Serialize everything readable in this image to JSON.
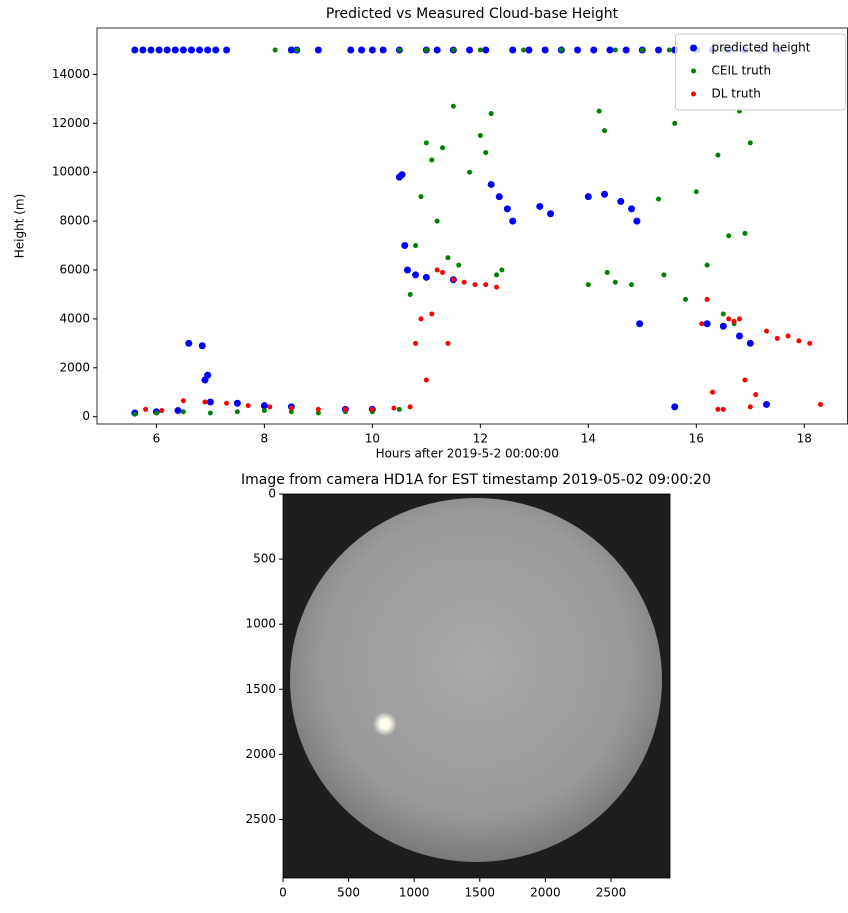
{
  "chart_data": [
    {
      "type": "scatter",
      "title": "Predicted vs Measured Cloud-base Height",
      "x_label": "Hours after 2019-5-2 00:00:00",
      "y_label": "Height (m)",
      "xlim": [
        4.9,
        18.8
      ],
      "ylim": [
        -300,
        15900
      ],
      "xticks": [
        6,
        8,
        10,
        12,
        14,
        16,
        18
      ],
      "yticks": [
        0,
        2000,
        4000,
        6000,
        8000,
        10000,
        12000,
        14000
      ],
      "grid": false,
      "legend": "upper right",
      "series": [
        {
          "name": "predicted height",
          "color": "#0000ff",
          "size": 3.5,
          "x": [
            5.6,
            5.75,
            5.9,
            6.05,
            6.2,
            6.35,
            6.5,
            6.65,
            6.8,
            6.95,
            7.1,
            7.3,
            8.5,
            8.6,
            9.0,
            9.6,
            9.8,
            10.0,
            10.2,
            10.5,
            11.0,
            11.2,
            11.5,
            11.8,
            12.1,
            12.6,
            12.9,
            13.2,
            13.5,
            13.8,
            14.1,
            14.4,
            14.7,
            15.0,
            15.3,
            15.6,
            16.0,
            16.3,
            16.6,
            16.9,
            17.2,
            17.5,
            5.6,
            6.0,
            6.4,
            6.6,
            6.85,
            6.9,
            6.95,
            7.0,
            7.5,
            8.0,
            8.5,
            9.5,
            10.0,
            10.5,
            10.55,
            10.6,
            10.65,
            10.8,
            11.0,
            11.5,
            12.2,
            12.35,
            12.5,
            12.6,
            13.1,
            13.3,
            14.0,
            14.3,
            14.6,
            14.8,
            14.9,
            14.95,
            15.6,
            16.2,
            16.5,
            16.8,
            17.0,
            17.3
          ],
          "values": [
            15000,
            15000,
            15000,
            15000,
            15000,
            15000,
            15000,
            15000,
            15000,
            15000,
            15000,
            15000,
            15000,
            15000,
            15000,
            15000,
            15000,
            15000,
            15000,
            15000,
            15000,
            15000,
            15000,
            15000,
            15000,
            15000,
            15000,
            15000,
            15000,
            15000,
            15000,
            15000,
            15000,
            15000,
            15000,
            15000,
            15000,
            15000,
            15000,
            15000,
            15000,
            15000,
            150,
            200,
            250,
            3000,
            2900,
            1500,
            1700,
            600,
            550,
            450,
            400,
            300,
            300,
            9800,
            9900,
            7000,
            6000,
            5800,
            5700,
            5600,
            9500,
            9000,
            8500,
            8000,
            8600,
            8300,
            9000,
            9100,
            8800,
            8500,
            8000,
            3800,
            400,
            3800,
            3700,
            3300,
            3000,
            500
          ]
        },
        {
          "name": "CEIL truth",
          "color": "#008000",
          "size": 2.5,
          "x": [
            5.6,
            6.0,
            6.5,
            7.0,
            7.5,
            8.0,
            8.5,
            9.0,
            9.5,
            10.0,
            10.5,
            10.7,
            10.8,
            10.9,
            11.0,
            11.1,
            11.2,
            11.3,
            11.4,
            11.5,
            11.6,
            11.8,
            12.0,
            12.1,
            12.2,
            12.3,
            12.4,
            14.0,
            14.2,
            14.3,
            14.35,
            14.5,
            14.8,
            15.3,
            15.4,
            15.6,
            15.8,
            16.0,
            16.2,
            16.4,
            16.5,
            16.6,
            16.7,
            16.8,
            16.9,
            17.0,
            8.2,
            8.6,
            10.5,
            11.0,
            11.5,
            12.0,
            12.8,
            13.5,
            14.5,
            15.0,
            15.5,
            16.0,
            16.5,
            17.0
          ],
          "values": [
            100,
            150,
            200,
            150,
            200,
            250,
            200,
            150,
            200,
            200,
            300,
            5000,
            7000,
            9000,
            11200,
            10500,
            8000,
            11000,
            6500,
            12700,
            6200,
            10000,
            11500,
            10800,
            12400,
            5800,
            6000,
            5400,
            12500,
            11700,
            5900,
            5500,
            5400,
            8900,
            5800,
            12000,
            4800,
            9200,
            6200,
            10700,
            4200,
            7400,
            3800,
            12500,
            7500,
            11200,
            15000,
            15000,
            15000,
            15000,
            15000,
            15000,
            15000,
            15000,
            15000,
            15000,
            15000,
            15000,
            15000,
            15000
          ]
        },
        {
          "name": "DL truth",
          "color": "#ff0000",
          "size": 2.5,
          "x": [
            5.8,
            6.1,
            6.5,
            6.9,
            7.3,
            7.7,
            8.1,
            8.5,
            9.0,
            9.5,
            10.0,
            10.4,
            10.7,
            10.8,
            10.9,
            11.0,
            11.1,
            11.2,
            11.3,
            11.4,
            11.5,
            11.7,
            11.9,
            12.1,
            12.3,
            16.1,
            16.2,
            16.3,
            16.4,
            16.5,
            16.6,
            16.7,
            16.8,
            16.9,
            17.0,
            17.1,
            17.3,
            17.5,
            17.7,
            17.9,
            18.1,
            18.3
          ],
          "values": [
            300,
            250,
            650,
            600,
            550,
            450,
            400,
            350,
            300,
            300,
            300,
            350,
            400,
            3000,
            4000,
            1500,
            4200,
            6000,
            5900,
            3000,
            5600,
            5500,
            5400,
            5400,
            5300,
            3800,
            4800,
            1000,
            300,
            300,
            4000,
            3900,
            4000,
            1500,
            400,
            900,
            3500,
            3200,
            3300,
            3100,
            3000,
            500
          ]
        }
      ]
    },
    {
      "type": "image",
      "title": "Image from camera HD1A for EST timestamp 2019-05-02 09:00:20",
      "xlim": [
        0,
        2950
      ],
      "ylim": [
        2950,
        0
      ],
      "xticks": [
        0,
        500,
        1000,
        1500,
        2000,
        2500
      ],
      "yticks": [
        0,
        500,
        1000,
        1500,
        2000,
        2500
      ]
    }
  ]
}
